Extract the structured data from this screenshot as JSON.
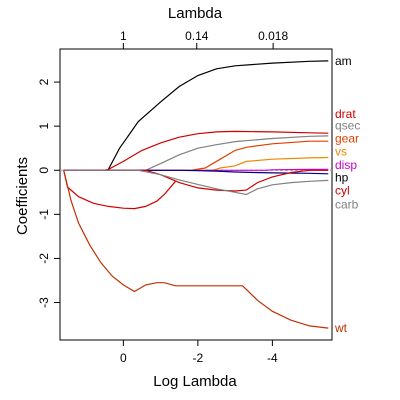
{
  "chart_data": {
    "type": "line",
    "title": "",
    "top_axis": {
      "label": "Lambda",
      "ticks": [
        {
          "pos": 0,
          "label": "1"
        },
        {
          "pos": -1.97,
          "label": "0.14"
        },
        {
          "pos": -4.02,
          "label": "0.018"
        }
      ]
    },
    "xlabel": "Log Lambda",
    "ylabel": "Coefficients",
    "xlim": [
      1.7,
      -5.6
    ],
    "ylim": [
      -3.85,
      2.75
    ],
    "x_ticks": [
      0,
      -2,
      -4
    ],
    "y_ticks": [
      -3,
      -2,
      -1,
      0,
      1,
      2
    ],
    "zero_line": true,
    "series": [
      {
        "name": "am",
        "color": "#000000",
        "x": [
          1.6,
          0.5,
          0.4,
          0.1,
          -0.4,
          -1.0,
          -1.5,
          -2.0,
          -2.5,
          -3.0,
          -4.0,
          -5.0,
          -5.5
        ],
        "y": [
          0,
          0,
          0.02,
          0.5,
          1.1,
          1.55,
          1.9,
          2.15,
          2.3,
          2.37,
          2.43,
          2.47,
          2.48
        ]
      },
      {
        "name": "drat",
        "color": "#d00000",
        "x": [
          1.6,
          0.5,
          0.4,
          0.0,
          -0.5,
          -1.0,
          -1.5,
          -2.0,
          -2.5,
          -3.0,
          -4.0,
          -5.0,
          -5.5
        ],
        "y": [
          0,
          0,
          0.02,
          0.2,
          0.45,
          0.62,
          0.75,
          0.83,
          0.87,
          0.88,
          0.87,
          0.85,
          0.84
        ]
      },
      {
        "name": "qsec",
        "color": "#808080",
        "x": [
          1.6,
          -0.6,
          -1.0,
          -1.5,
          -2.0,
          -2.5,
          -3.0,
          -4.0,
          -5.0,
          -5.5
        ],
        "y": [
          0,
          0,
          0.15,
          0.35,
          0.5,
          0.58,
          0.65,
          0.72,
          0.77,
          0.78
        ]
      },
      {
        "name": "gear",
        "color": "#e04000",
        "x": [
          1.6,
          -1.8,
          -2.2,
          -2.6,
          -3.0,
          -3.3,
          -4.0,
          -5.0,
          -5.5
        ],
        "y": [
          0,
          0,
          0.05,
          0.25,
          0.45,
          0.52,
          0.6,
          0.66,
          0.66
        ]
      },
      {
        "name": "vs",
        "color": "#ee8800",
        "x": [
          1.6,
          -2.4,
          -2.6,
          -3.0,
          -3.3,
          -4.0,
          -5.0,
          -5.5
        ],
        "y": [
          0,
          0,
          0.05,
          0.1,
          0.2,
          0.25,
          0.28,
          0.29
        ]
      },
      {
        "name": "disp",
        "color": "#cc00cc",
        "x": [
          1.6,
          -3.8,
          -4.0,
          -5.0,
          -5.5
        ],
        "y": [
          0,
          0,
          0.01,
          0.02,
          0.02
        ]
      },
      {
        "name": "hp",
        "color": "#000080",
        "x": [
          1.6,
          -1.5,
          -2.0,
          -2.5,
          -3.0,
          -3.5,
          -4.0,
          -5.0,
          -5.5
        ],
        "y": [
          0,
          0,
          -0.01,
          -0.02,
          -0.04,
          -0.05,
          -0.06,
          -0.07,
          -0.08
        ]
      },
      {
        "name": "cyl",
        "color": "#d00000",
        "x": [
          1.6,
          -0.6,
          -1.0,
          -1.5,
          -2.0,
          -2.5,
          -3.0,
          -3.3,
          -3.6,
          -4.0,
          -4.5,
          -5.0,
          -5.5
        ],
        "y": [
          0,
          0,
          -0.1,
          -0.28,
          -0.4,
          -0.45,
          -0.47,
          -0.45,
          -0.28,
          -0.15,
          -0.05,
          0.0,
          0.0
        ]
      },
      {
        "name": "carb",
        "color": "#808080",
        "x": [
          1.6,
          -0.4,
          -1.0,
          -1.5,
          -2.0,
          -2.5,
          -3.0,
          -3.3,
          -3.6,
          -4.0,
          -4.5,
          -5.0,
          -5.5
        ],
        "y": [
          0,
          0,
          -0.1,
          -0.22,
          -0.32,
          -0.42,
          -0.5,
          -0.55,
          -0.42,
          -0.33,
          -0.28,
          -0.25,
          -0.23
        ]
      },
      {
        "name": "cyl",
        "color": "#d00000",
        "x": [
          1.6,
          1.5,
          1.2,
          0.8,
          0.4,
          0.0,
          -0.3,
          -0.6,
          -0.9,
          -1.1,
          -1.4
        ],
        "y": [
          0,
          -0.38,
          -0.6,
          -0.75,
          -0.82,
          -0.86,
          -0.87,
          -0.82,
          -0.7,
          -0.55,
          -0.25
        ]
      },
      {
        "name": "wt",
        "color": "#c03000",
        "x": [
          1.6,
          1.4,
          1.2,
          0.9,
          0.6,
          0.3,
          0.0,
          -0.3,
          -0.6,
          -0.9,
          -1.1,
          -1.4,
          -2.0,
          -2.6,
          -3.2,
          -3.6,
          -4.0,
          -4.5,
          -5.0,
          -5.5
        ],
        "y": [
          0,
          -0.7,
          -1.2,
          -1.7,
          -2.1,
          -2.4,
          -2.6,
          -2.75,
          -2.6,
          -2.55,
          -2.55,
          -2.62,
          -2.62,
          -2.62,
          -2.62,
          -2.95,
          -3.2,
          -3.4,
          -3.53,
          -3.58
        ]
      }
    ],
    "labels": [
      {
        "text": "am",
        "y": 2.48,
        "color": "#000000"
      },
      {
        "text": "drat",
        "y": 1.28,
        "color": "#d00000"
      },
      {
        "text": "qsec",
        "y": 1.02,
        "color": "#808080"
      },
      {
        "text": "gear",
        "y": 0.72,
        "color": "#e04000"
      },
      {
        "text": "vs",
        "y": 0.42,
        "color": "#ee8800"
      },
      {
        "text": "disp",
        "y": 0.12,
        "color": "#cc00cc"
      },
      {
        "text": "hp",
        "y": -0.16,
        "color": "#000000"
      },
      {
        "text": "cyl",
        "y": -0.46,
        "color": "#d00000"
      },
      {
        "text": "carb",
        "y": -0.78,
        "color": "#808080"
      },
      {
        "text": "wt",
        "y": -3.58,
        "color": "#c03000"
      }
    ]
  }
}
